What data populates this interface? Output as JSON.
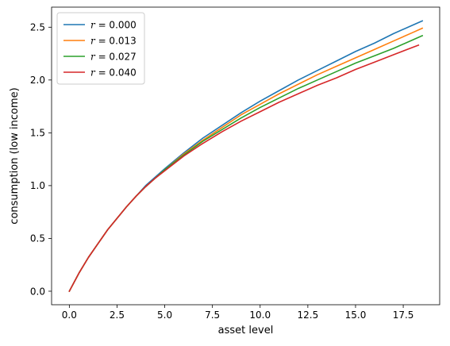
{
  "chart_data": {
    "type": "line",
    "xlabel": "asset level",
    "ylabel": "consumption (low income)",
    "xlim": [
      -0.93,
      19.41
    ],
    "ylim": [
      -0.128,
      2.69
    ],
    "grid": false,
    "legend_placement": "top-left",
    "xticks": [
      {
        "value": 0.0,
        "label": "0.0"
      },
      {
        "value": 2.5,
        "label": "2.5"
      },
      {
        "value": 5.0,
        "label": "5.0"
      },
      {
        "value": 7.5,
        "label": "7.5"
      },
      {
        "value": 10.0,
        "label": "10.0"
      },
      {
        "value": 12.5,
        "label": "12.5"
      },
      {
        "value": 15.0,
        "label": "15.0"
      },
      {
        "value": 17.5,
        "label": "17.5"
      }
    ],
    "yticks": [
      {
        "value": 0.0,
        "label": "0.0"
      },
      {
        "value": 0.5,
        "label": "0.5"
      },
      {
        "value": 1.0,
        "label": "1.0"
      },
      {
        "value": 1.5,
        "label": "1.5"
      },
      {
        "value": 2.0,
        "label": "2.0"
      },
      {
        "value": 2.5,
        "label": "2.5"
      }
    ],
    "series": [
      {
        "name": "r = 0.000",
        "legend_var": "r",
        "legend_value": "= 0.000",
        "color": "#1f77b4",
        "x": [
          0,
          0.5,
          1,
          1.5,
          2,
          2.5,
          3,
          3.5,
          4,
          4.5,
          5,
          6,
          7,
          8,
          9,
          10,
          11,
          12,
          13,
          14,
          15,
          16,
          17,
          18,
          18.5
        ],
        "y": [
          0,
          0.17,
          0.32,
          0.45,
          0.58,
          0.69,
          0.8,
          0.9,
          1.0,
          1.08,
          1.16,
          1.31,
          1.45,
          1.57,
          1.69,
          1.8,
          1.9,
          2.0,
          2.09,
          2.18,
          2.27,
          2.35,
          2.44,
          2.52,
          2.56
        ]
      },
      {
        "name": "r = 0.013",
        "legend_var": "r",
        "legend_value": "= 0.013",
        "color": "#ff7f0e",
        "x": [
          0,
          0.5,
          1,
          1.5,
          2,
          2.5,
          3,
          3.5,
          4,
          4.5,
          5,
          6,
          7,
          8,
          9,
          10,
          11,
          12,
          13,
          14,
          15,
          16,
          17,
          18,
          18.5
        ],
        "y": [
          0,
          0.17,
          0.32,
          0.45,
          0.58,
          0.69,
          0.8,
          0.9,
          0.99,
          1.07,
          1.15,
          1.3,
          1.43,
          1.55,
          1.67,
          1.77,
          1.87,
          1.96,
          2.05,
          2.13,
          2.21,
          2.29,
          2.37,
          2.45,
          2.49
        ]
      },
      {
        "name": "r = 0.027",
        "legend_var": "r",
        "legend_value": "= 0.027",
        "color": "#2ca02c",
        "x": [
          0,
          0.5,
          1,
          1.5,
          2,
          2.5,
          3,
          3.5,
          4,
          4.5,
          5,
          6,
          7,
          8,
          9,
          10,
          11,
          12,
          13,
          14,
          15,
          16,
          17,
          18,
          18.5
        ],
        "y": [
          0,
          0.17,
          0.32,
          0.45,
          0.58,
          0.69,
          0.8,
          0.9,
          0.99,
          1.07,
          1.15,
          1.29,
          1.42,
          1.53,
          1.64,
          1.74,
          1.83,
          1.92,
          2.0,
          2.08,
          2.16,
          2.23,
          2.3,
          2.38,
          2.42
        ]
      },
      {
        "name": "r = 0.040",
        "legend_var": "r",
        "legend_value": "= 0.040",
        "color": "#d62728",
        "x": [
          0,
          0.5,
          1,
          1.5,
          2,
          2.5,
          3,
          3.5,
          4,
          4.5,
          5,
          6,
          7,
          8,
          9,
          10,
          11,
          12,
          13,
          14,
          15,
          16,
          17,
          18,
          18.3
        ],
        "y": [
          0,
          0.17,
          0.32,
          0.45,
          0.58,
          0.69,
          0.8,
          0.9,
          0.99,
          1.07,
          1.14,
          1.28,
          1.4,
          1.51,
          1.61,
          1.7,
          1.79,
          1.87,
          1.95,
          2.02,
          2.1,
          2.17,
          2.24,
          2.31,
          2.33
        ]
      }
    ]
  }
}
